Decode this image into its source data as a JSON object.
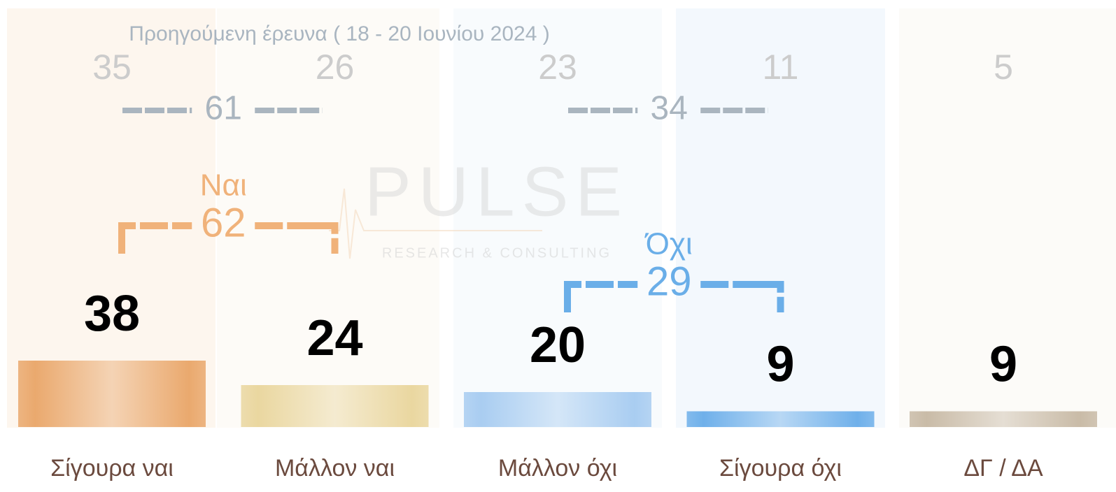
{
  "chart_data": {
    "type": "bar",
    "categories": [
      "Σίγουρα ναι",
      "Μάλλον ναι",
      "Μάλλον όχι",
      "Σίγουρα όχι",
      "ΔΓ / ΔΑ"
    ],
    "values": [
      38,
      24,
      20,
      9,
      9
    ],
    "colors": [
      "#eaa96e",
      "#ead7a0",
      "#a9cdf1",
      "#6fb0ea",
      "#c9bba7"
    ],
    "previous": {
      "label": "Προηγούμενη έρευνα ( 18 - 20 Ιουνίου 2024 )",
      "values": [
        35,
        26,
        23,
        11,
        5
      ]
    },
    "groups": [
      {
        "name": "Ναι",
        "value": 62,
        "previous": 61,
        "color": "#f0b27a"
      },
      {
        "name": "Όχι",
        "value": 29,
        "previous": 34,
        "color": "#6aaee8"
      }
    ],
    "watermark": {
      "title": "PULSE",
      "subtitle": "RESEARCH & CONSULTING"
    }
  }
}
